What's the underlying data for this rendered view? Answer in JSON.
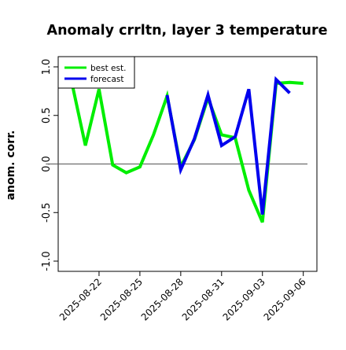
{
  "chart_data": {
    "type": "line",
    "title": "Anomaly crrltn, layer 3 temperature",
    "ylabel": "anom. corr.",
    "xlabel": "",
    "ylim": [
      -1.0,
      1.0
    ],
    "yticks": [
      -1.0,
      -0.5,
      0.0,
      0.5,
      1.0
    ],
    "ytick_labels": [
      "-1.0",
      "-0.5",
      "0.0",
      "0.5",
      "1.0"
    ],
    "xlim": [
      "2025-08-19",
      "2025-09-07"
    ],
    "x": [
      "2025-08-20",
      "2025-08-21",
      "2025-08-22",
      "2025-08-23",
      "2025-08-24",
      "2025-08-25",
      "2025-08-26",
      "2025-08-27",
      "2025-08-28",
      "2025-08-29",
      "2025-08-30",
      "2025-08-31",
      "2025-09-01",
      "2025-09-02",
      "2025-09-03",
      "2025-09-04",
      "2025-09-05",
      "2025-09-06"
    ],
    "xticks": [
      "2025-08-22",
      "2025-08-25",
      "2025-08-28",
      "2025-08-31",
      "2025-09-03",
      "2025-09-06"
    ],
    "xtick_colors": [
      "#000000",
      "#000000",
      "#228B22",
      "#000000",
      "#000000",
      "#000000"
    ],
    "reference_line": 0.0,
    "series": [
      {
        "name": "best est.",
        "color": "#00ee00",
        "values": [
          0.84,
          0.19,
          0.77,
          -0.01,
          -0.09,
          -0.03,
          0.3,
          0.7,
          -0.03,
          0.25,
          0.68,
          0.3,
          0.27,
          -0.27,
          -0.6,
          0.83,
          0.84,
          0.83
        ]
      },
      {
        "name": "forecast",
        "color": "#0000ee",
        "values": [
          null,
          null,
          null,
          null,
          null,
          null,
          null,
          0.71,
          -0.06,
          0.26,
          0.71,
          0.19,
          0.28,
          0.77,
          -0.52,
          0.87,
          0.73,
          null
        ]
      }
    ],
    "legend": {
      "placement": "top-left",
      "entries": [
        "best est.",
        "forecast"
      ]
    },
    "grid": false
  }
}
